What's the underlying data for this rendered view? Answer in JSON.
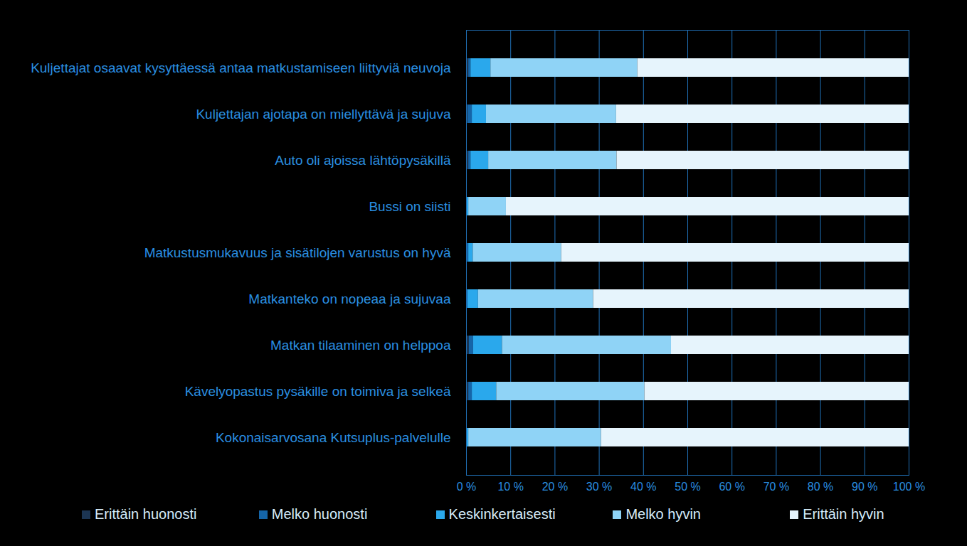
{
  "chart_data": {
    "type": "bar",
    "orientation": "horizontal",
    "stacked": true,
    "grid": true,
    "legend": "bottom",
    "categories": [
      "Kuljettajat osaavat kysyttäessä antaa matkustamiseen liittyviä neuvoja",
      "Kuljettajan ajotapa on miellyttävä ja sujuva",
      "Auto oli ajoissa lähtöpysäkillä",
      "Bussi on siisti",
      "Matkustusmukavuus ja sisätilojen varustus on hyvä",
      "Matkanteko on nopeaa ja sujuvaa",
      "Matkan tilaaminen on helppoa",
      "Kävelyopastus pysäkille on toimiva ja selkeä",
      "Kokonaisarvosana Kutsuplus-palvelulle"
    ],
    "series": [
      {
        "name": "Erittäin huonosti",
        "color": "#1c3553",
        "values": [
          0.5,
          0.3,
          0.5,
          0,
          0,
          0,
          0.6,
          0.5,
          0
        ]
      },
      {
        "name": "Melko huonosti",
        "color": "#1565a8",
        "values": [
          0.5,
          1,
          0.5,
          0,
          0.5,
          0.3,
          1,
          0.8,
          0
        ]
      },
      {
        "name": "Keskinkertaisesti",
        "color": "#2aa8ec",
        "values": [
          4.5,
          3.2,
          4,
          0.5,
          1,
          2.4,
          6.5,
          5.5,
          0.5
        ]
      },
      {
        "name": "Melko hyvin",
        "color": "#8fd3f6",
        "values": [
          33.2,
          29.4,
          29,
          8.5,
          20,
          26,
          38.2,
          33.5,
          30
        ]
      },
      {
        "name": "Erittäin hyvin",
        "color": "#e6f4fc",
        "values": [
          61.3,
          66.1,
          66,
          91,
          78.5,
          71.3,
          53.7,
          59.7,
          69.5
        ]
      }
    ],
    "xlim": [
      0,
      100
    ],
    "xticks": [
      {
        "value": 0,
        "label": "0 %"
      },
      {
        "value": 10,
        "label": "10 %"
      },
      {
        "value": 20,
        "label": "20 %"
      },
      {
        "value": 30,
        "label": "30 %"
      },
      {
        "value": 40,
        "label": "40 %"
      },
      {
        "value": 50,
        "label": "50 %"
      },
      {
        "value": 60,
        "label": "60 %"
      },
      {
        "value": 70,
        "label": "70 %"
      },
      {
        "value": 80,
        "label": "80 %"
      },
      {
        "value": 90,
        "label": "90 %"
      },
      {
        "value": 100,
        "label": "100 %"
      }
    ]
  }
}
